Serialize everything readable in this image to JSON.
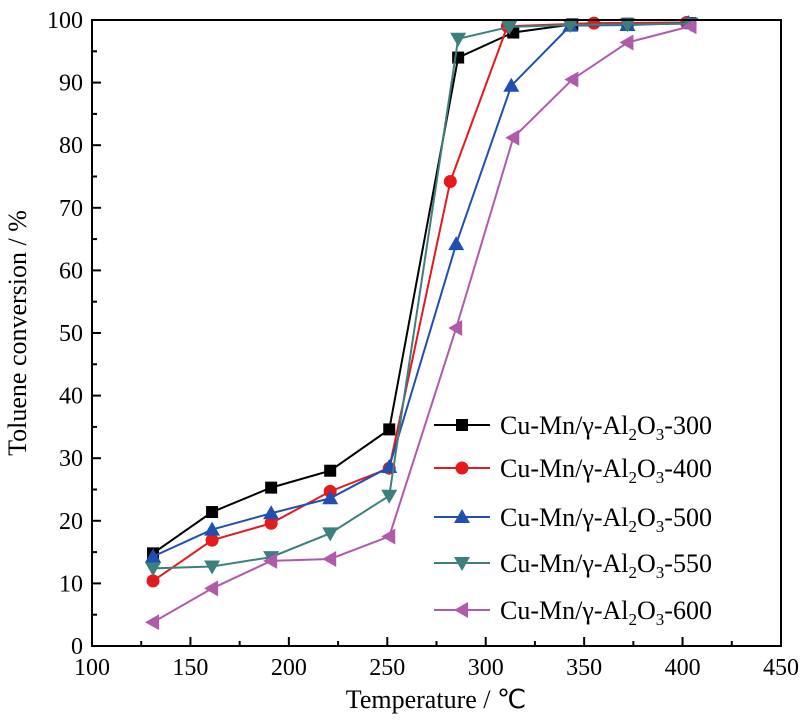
{
  "chart_data": {
    "type": "line",
    "xlabel": "Temperature / ℃",
    "ylabel": "Toluene conversion / %",
    "xlim": [
      100,
      450
    ],
    "ylim": [
      0,
      100
    ],
    "xticks": [
      100,
      150,
      200,
      250,
      300,
      350,
      400,
      450
    ],
    "yticks": [
      0,
      10,
      20,
      30,
      40,
      50,
      60,
      70,
      80,
      90,
      100
    ],
    "grid": false,
    "legend_position": "bottom-right",
    "series": [
      {
        "name": "Cu-Mn/γ-Al2O3-300",
        "legend_parts": [
          "Cu-Mn/γ-Al",
          "2",
          "O",
          "3",
          "-300"
        ],
        "color": "#000000",
        "marker": "square",
        "x": [
          131,
          161,
          191,
          221,
          251,
          286,
          314,
          344,
          372,
          404
        ],
        "y": [
          14.8,
          21.4,
          25.3,
          28.0,
          34.6,
          94.0,
          98.0,
          99.3,
          99.4,
          99.5
        ]
      },
      {
        "name": "Cu-Mn/γ-Al2O3-400",
        "legend_parts": [
          "Cu-Mn/γ-Al",
          "2",
          "O",
          "3",
          "-400"
        ],
        "color": "#e41a1c",
        "marker": "circle",
        "x": [
          131,
          161,
          191,
          221,
          251,
          282,
          311,
          355,
          402
        ],
        "y": [
          10.4,
          16.9,
          19.6,
          24.7,
          28.4,
          74.2,
          99.0,
          99.5,
          99.6
        ]
      },
      {
        "name": "Cu-Mn/γ-Al2O3-500",
        "legend_parts": [
          "Cu-Mn/γ-Al",
          "2",
          "O",
          "3",
          "-500"
        ],
        "color": "#1f4fb0",
        "marker": "triangle-up",
        "x": [
          131,
          161,
          191,
          221,
          251,
          285,
          313,
          343,
          372,
          403
        ],
        "y": [
          14.3,
          18.6,
          21.2,
          23.6,
          28.6,
          64.2,
          89.5,
          99.1,
          99.2,
          99.5
        ]
      },
      {
        "name": "Cu-Mn/γ-Al2O3-550",
        "legend_parts": [
          "Cu-Mn/γ-Al",
          "2",
          "O",
          "3",
          "-550"
        ],
        "color": "#3d7f7f",
        "marker": "triangle-down",
        "x": [
          131,
          161,
          191,
          221,
          251,
          286,
          312,
          343,
          372,
          404
        ],
        "y": [
          12.4,
          12.7,
          14.2,
          18.0,
          24.0,
          97.0,
          98.9,
          99.2,
          99.3,
          99.4
        ]
      },
      {
        "name": "Cu-Mn/γ-Al2O3-600",
        "legend_parts": [
          "Cu-Mn/γ-Al",
          "2",
          "O",
          "3",
          "-600"
        ],
        "color": "#b05aab",
        "marker": "triangle-left",
        "x": [
          131,
          161,
          191,
          221,
          251,
          285,
          314,
          344,
          372,
          404
        ],
        "y": [
          3.8,
          9.2,
          13.6,
          13.9,
          17.5,
          50.8,
          81.2,
          90.5,
          96.4,
          99.0
        ]
      }
    ]
  }
}
